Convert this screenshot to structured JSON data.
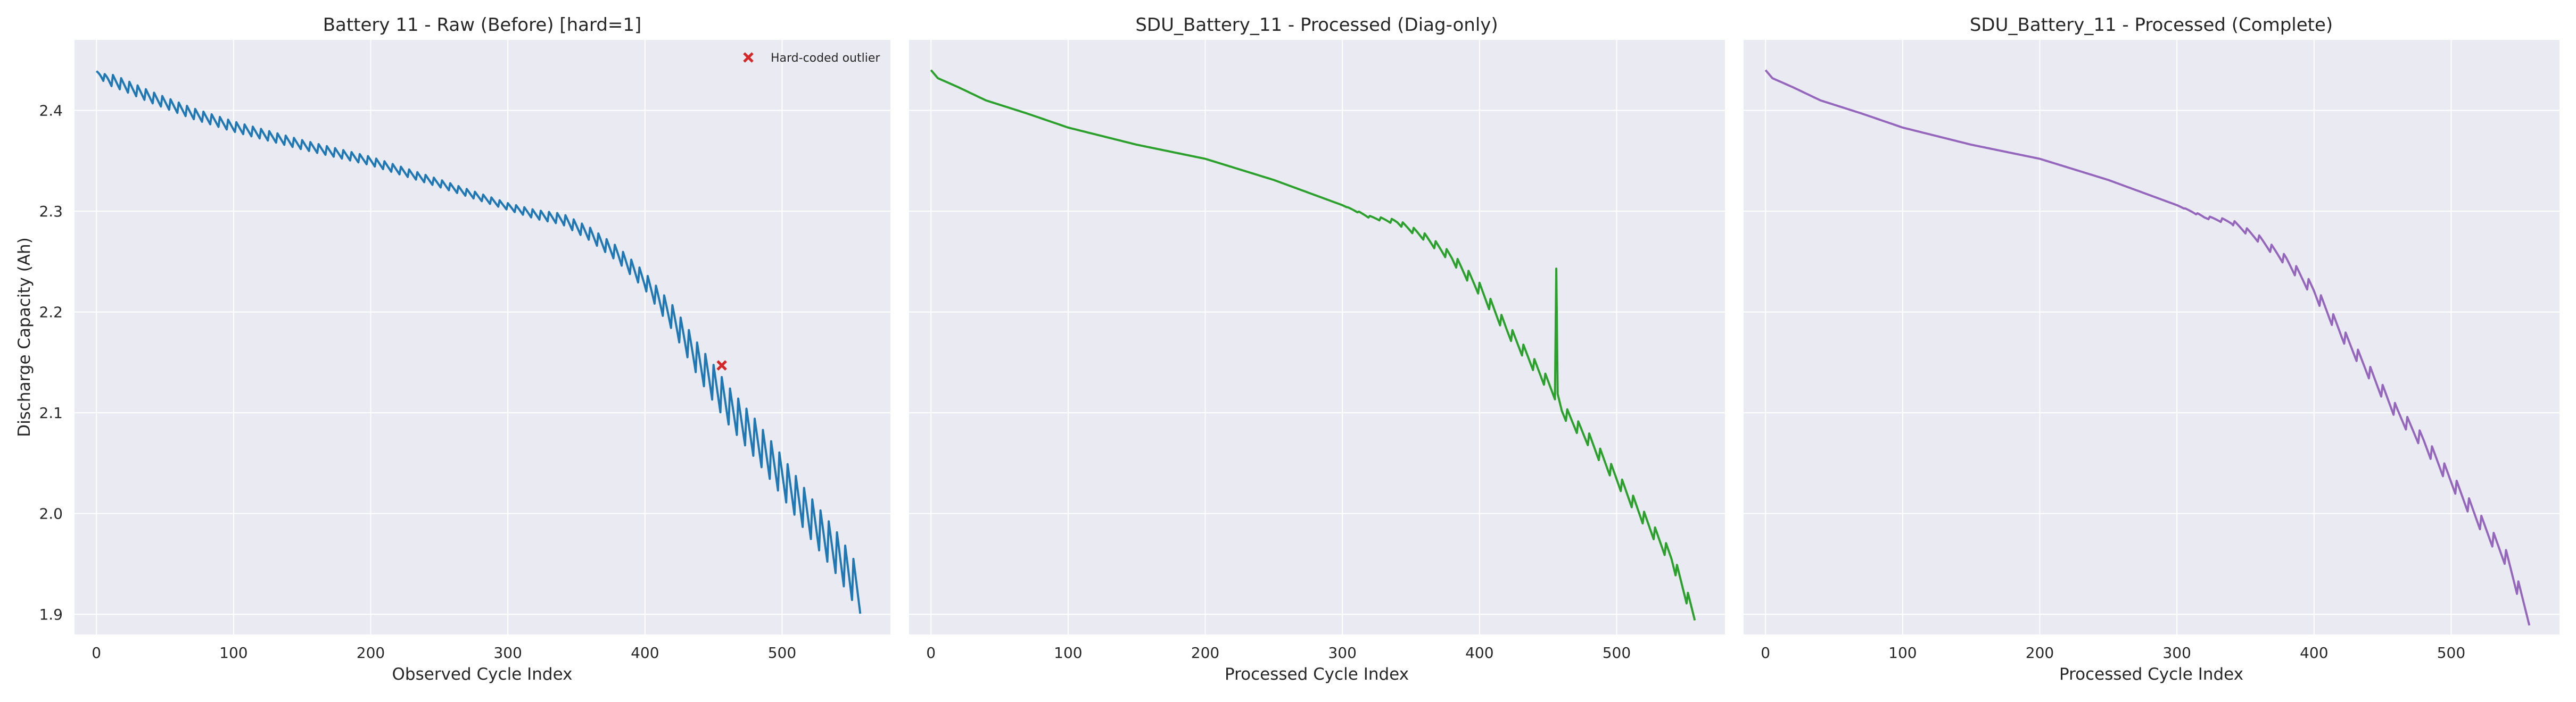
{
  "figure": {
    "background": "#ffffff",
    "plot_background": "#eaeaf2",
    "grid_color": "#ffffff"
  },
  "chart_data": [
    {
      "type": "line",
      "title": "Battery 11 - Raw (Before)  [hard=1]",
      "xlabel": "Observed Cycle Index",
      "ylabel": "Discharge Capacity (Ah)",
      "xlim": [
        -16,
        579
      ],
      "ylim": [
        1.88,
        2.47
      ],
      "xticks": [
        0,
        100,
        200,
        300,
        400,
        500
      ],
      "yticks": [
        1.9,
        2.0,
        2.1,
        2.2,
        2.3,
        2.4
      ],
      "grid": true,
      "color": "#1f77b4",
      "shape": {
        "x_range": [
          0,
          557
        ],
        "baseline": [
          [
            0,
            2.438
          ],
          [
            5,
            2.432
          ],
          [
            20,
            2.424
          ],
          [
            40,
            2.412
          ],
          [
            70,
            2.396
          ],
          [
            100,
            2.383
          ],
          [
            150,
            2.365
          ],
          [
            200,
            2.349
          ],
          [
            250,
            2.327
          ],
          [
            300,
            2.304
          ],
          [
            320,
            2.296
          ],
          [
            340,
            2.291
          ],
          [
            360,
            2.276
          ],
          [
            380,
            2.256
          ],
          [
            400,
            2.229
          ],
          [
            420,
            2.192
          ],
          [
            440,
            2.146
          ],
          [
            460,
            2.105
          ],
          [
            480,
            2.071
          ],
          [
            500,
            2.033
          ],
          [
            520,
            1.993
          ],
          [
            540,
            1.956
          ],
          [
            557,
            1.918
          ]
        ],
        "oscillation_amplitude": [
          [
            0,
            0.001
          ],
          [
            10,
            0.007
          ],
          [
            300,
            0.004
          ],
          [
            400,
            0.01
          ],
          [
            450,
            0.022
          ],
          [
            557,
            0.026
          ]
        ],
        "oscillation_period": 6
      },
      "outlier": {
        "x": 456,
        "y": 2.147,
        "marker": "x",
        "color": "#d62728"
      },
      "legend": {
        "position": "top-right",
        "entries": [
          "Hard-coded outlier"
        ]
      }
    },
    {
      "type": "line",
      "title": "SDU_Battery_11 - Processed (Diag-only)",
      "xlabel": "Processed Cycle Index",
      "ylabel": "",
      "xlim": [
        -16,
        579
      ],
      "ylim": [
        1.88,
        2.47
      ],
      "xticks": [
        0,
        100,
        200,
        300,
        400,
        500
      ],
      "yticks": [
        1.9,
        2.0,
        2.1,
        2.2,
        2.3,
        2.4
      ],
      "grid": true,
      "color": "#2ca02c",
      "shape": {
        "x_range": [
          0,
          557
        ],
        "baseline": [
          [
            0,
            2.44
          ],
          [
            5,
            2.432
          ],
          [
            20,
            2.423
          ],
          [
            40,
            2.41
          ],
          [
            70,
            2.397
          ],
          [
            100,
            2.383
          ],
          [
            150,
            2.366
          ],
          [
            200,
            2.352
          ],
          [
            250,
            2.331
          ],
          [
            300,
            2.306
          ],
          [
            320,
            2.294
          ],
          [
            340,
            2.289
          ],
          [
            360,
            2.274
          ],
          [
            380,
            2.253
          ],
          [
            400,
            2.222
          ],
          [
            420,
            2.182
          ],
          [
            440,
            2.146
          ],
          [
            456,
            2.117
          ],
          [
            460,
            2.102
          ],
          [
            480,
            2.072
          ],
          [
            500,
            2.034
          ],
          [
            520,
            1.994
          ],
          [
            540,
            1.955
          ],
          [
            557,
            1.896
          ]
        ],
        "oscillation_amplitude": [
          [
            0,
            0.0
          ],
          [
            300,
            0.0
          ],
          [
            360,
            0.004
          ],
          [
            400,
            0.007
          ],
          [
            557,
            0.008
          ]
        ],
        "oscillation_period": 8
      },
      "spike": {
        "x": 456,
        "y": 2.243
      }
    },
    {
      "type": "line",
      "title": "SDU_Battery_11 - Processed (Complete)",
      "xlabel": "Processed Cycle Index",
      "ylabel": "",
      "xlim": [
        -16,
        579
      ],
      "ylim": [
        1.88,
        2.47
      ],
      "xticks": [
        0,
        100,
        200,
        300,
        400,
        500
      ],
      "yticks": [
        1.9,
        2.0,
        2.1,
        2.2,
        2.3,
        2.4
      ],
      "grid": true,
      "color": "#9467bd",
      "shape": {
        "x_range": [
          0,
          557
        ],
        "baseline": [
          [
            0,
            2.44
          ],
          [
            5,
            2.432
          ],
          [
            20,
            2.423
          ],
          [
            40,
            2.41
          ],
          [
            70,
            2.397
          ],
          [
            100,
            2.383
          ],
          [
            150,
            2.366
          ],
          [
            200,
            2.352
          ],
          [
            250,
            2.331
          ],
          [
            300,
            2.306
          ],
          [
            320,
            2.294
          ],
          [
            340,
            2.289
          ],
          [
            360,
            2.272
          ],
          [
            380,
            2.25
          ],
          [
            400,
            2.22
          ],
          [
            420,
            2.178
          ],
          [
            440,
            2.14
          ],
          [
            460,
            2.1
          ],
          [
            480,
            2.07
          ],
          [
            500,
            2.032
          ],
          [
            520,
            1.993
          ],
          [
            540,
            1.955
          ],
          [
            557,
            1.896
          ]
        ],
        "oscillation_amplitude": [
          [
            0,
            0.0
          ],
          [
            300,
            0.0
          ],
          [
            360,
            0.004
          ],
          [
            400,
            0.007
          ],
          [
            557,
            0.009
          ]
        ],
        "oscillation_period": 9
      }
    }
  ]
}
